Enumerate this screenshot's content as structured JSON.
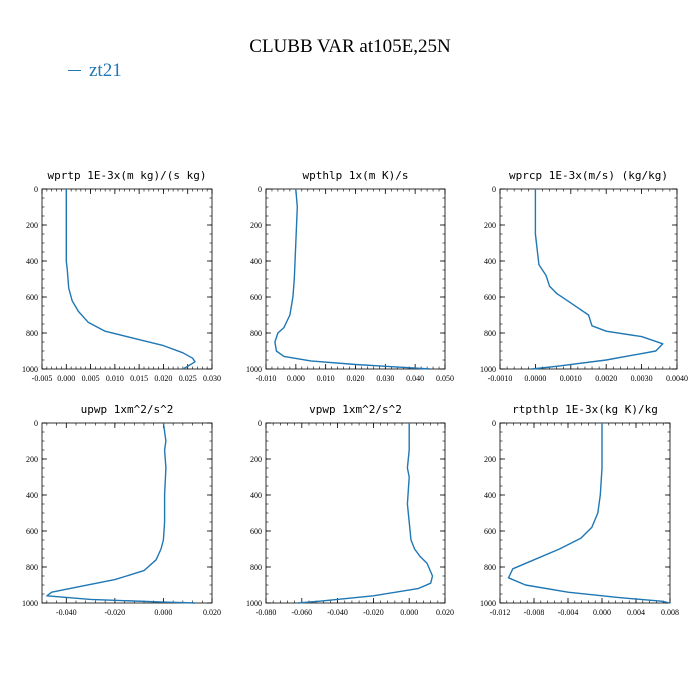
{
  "title": "CLUBB VAR at105E,25N",
  "legend": [
    {
      "label": "zt21",
      "color": "#1f77b4"
    }
  ],
  "chart_data": [
    {
      "type": "line",
      "title": "wprtp  1E-3x(m kg)/(s kg)",
      "xlim": [
        -0.005,
        0.03
      ],
      "xticks": [
        -0.005,
        0.0,
        0.005,
        0.01,
        0.015,
        0.02,
        0.025,
        0.03
      ],
      "xtick_labels": [
        "-0.005",
        "0.000",
        "0.005",
        "0.010",
        "0.015",
        "0.020",
        "0.025",
        "0.030"
      ],
      "ylim": [
        1000,
        0
      ],
      "yticks": [
        0,
        200,
        400,
        600,
        800,
        1000
      ],
      "ytick_labels": [
        "0",
        "200",
        "400",
        "600",
        "800",
        "1000"
      ],
      "series": [
        {
          "name": "zt21",
          "color": "#1f77b4",
          "x": [
            0.0,
            0.0,
            0.0,
            0.0002,
            0.0005,
            0.0012,
            0.0025,
            0.0045,
            0.008,
            0.014,
            0.02,
            0.024,
            0.026,
            0.0265,
            0.025,
            0.024
          ],
          "y": [
            0,
            200,
            400,
            450,
            550,
            620,
            680,
            740,
            790,
            830,
            870,
            910,
            940,
            960,
            985,
            1000
          ]
        }
      ]
    },
    {
      "type": "line",
      "title": "wpthlp  1x(m K)/s",
      "xlim": [
        -0.01,
        0.05
      ],
      "xticks": [
        -0.01,
        0.0,
        0.01,
        0.02,
        0.03,
        0.04,
        0.05
      ],
      "xtick_labels": [
        "-0.010",
        "0.000",
        "0.010",
        "0.020",
        "0.030",
        "0.040",
        "0.050"
      ],
      "ylim": [
        1000,
        0
      ],
      "yticks": [
        0,
        200,
        400,
        600,
        800,
        1000
      ],
      "ytick_labels": [
        "0",
        "200",
        "400",
        "600",
        "800",
        "1000"
      ],
      "series": [
        {
          "name": "zt21",
          "color": "#1f77b4",
          "x": [
            0.0,
            0.0005,
            0.0,
            -0.0005,
            -0.001,
            -0.002,
            -0.004,
            -0.006,
            -0.007,
            -0.0065,
            -0.004,
            0.005,
            0.02,
            0.035,
            0.045
          ],
          "y": [
            0,
            100,
            300,
            500,
            600,
            700,
            770,
            800,
            850,
            900,
            930,
            955,
            975,
            990,
            1000
          ]
        }
      ]
    },
    {
      "type": "line",
      "title": "wprcp  1E-3x(m/s) (kg/kg)",
      "xlim": [
        -0.001,
        0.004
      ],
      "xticks": [
        -0.001,
        0.0,
        0.001,
        0.002,
        0.003,
        0.004
      ],
      "xtick_labels": [
        "-0.0010",
        "0.0000",
        "0.0010",
        "0.0020",
        "0.0030",
        "0.0040"
      ],
      "ylim": [
        1000,
        0
      ],
      "yticks": [
        0,
        200,
        400,
        600,
        800,
        1000
      ],
      "ytick_labels": [
        "0",
        "200",
        "400",
        "600",
        "800",
        "1000"
      ],
      "series": [
        {
          "name": "zt21",
          "color": "#1f77b4",
          "x": [
            0.0,
            0.0,
            0.0001,
            0.0003,
            0.0004,
            0.0006,
            0.0009,
            0.0012,
            0.0015,
            0.0016,
            0.002,
            0.003,
            0.0036,
            0.0034,
            0.002,
            0.0006,
            -0.0001
          ],
          "y": [
            0,
            250,
            420,
            480,
            540,
            580,
            620,
            660,
            700,
            760,
            790,
            820,
            860,
            900,
            950,
            985,
            1000
          ]
        }
      ]
    },
    {
      "type": "line",
      "title": "upwp  1xm^2/s^2",
      "xlim": [
        -0.05,
        0.02
      ],
      "xticks": [
        -0.04,
        -0.02,
        0.0,
        0.02
      ],
      "xtick_labels": [
        "-0.040",
        "-0.020",
        "0.000",
        "0.020"
      ],
      "ylim": [
        1000,
        0
      ],
      "yticks": [
        0,
        200,
        400,
        600,
        800,
        1000
      ],
      "ytick_labels": [
        "0",
        "200",
        "400",
        "600",
        "800",
        "1000"
      ],
      "series": [
        {
          "name": "zt21",
          "color": "#1f77b4",
          "x": [
            0.0,
            0.001,
            0.0005,
            0.001,
            0.0005,
            0.0005,
            0.0,
            -0.001,
            -0.003,
            -0.008,
            -0.02,
            -0.035,
            -0.046,
            -0.048,
            -0.03,
            0.0,
            0.013
          ],
          "y": [
            0,
            100,
            150,
            250,
            400,
            550,
            650,
            700,
            760,
            820,
            870,
            910,
            940,
            960,
            980,
            995,
            1000
          ]
        }
      ]
    },
    {
      "type": "line",
      "title": "vpwp  1xm^2/s^2",
      "xlim": [
        -0.08,
        0.02
      ],
      "xticks": [
        -0.08,
        -0.06,
        -0.04,
        -0.02,
        0.0,
        0.02
      ],
      "xtick_labels": [
        "-0.080",
        "-0.060",
        "-0.040",
        "-0.020",
        "0.000",
        "0.020"
      ],
      "ylim": [
        1000,
        0
      ],
      "yticks": [
        0,
        200,
        400,
        600,
        800,
        1000
      ],
      "ytick_labels": [
        "0",
        "200",
        "400",
        "600",
        "800",
        "1000"
      ],
      "series": [
        {
          "name": "zt21",
          "color": "#1f77b4",
          "x": [
            0.0,
            0.0,
            -0.001,
            0.0,
            -0.001,
            0.0,
            0.001,
            0.003,
            0.006,
            0.01,
            0.013,
            0.012,
            0.005,
            -0.02,
            -0.05,
            -0.062
          ],
          "y": [
            0,
            150,
            250,
            300,
            450,
            550,
            650,
            700,
            740,
            780,
            850,
            890,
            920,
            960,
            990,
            1000
          ]
        }
      ]
    },
    {
      "type": "line",
      "title": "rtpthlp  1E-3x(kg K)/kg",
      "xlim": [
        -0.012,
        0.008
      ],
      "xticks": [
        -0.012,
        -0.008,
        -0.004,
        0.0,
        0.004,
        0.008
      ],
      "xtick_labels": [
        "-0.012",
        "-0.008",
        "-0.004",
        "0.000",
        "0.004",
        "0.008"
      ],
      "ylim": [
        1000,
        0
      ],
      "yticks": [
        0,
        200,
        400,
        600,
        800,
        1000
      ],
      "ytick_labels": [
        "0",
        "200",
        "400",
        "600",
        "800",
        "1000"
      ],
      "series": [
        {
          "name": "zt21",
          "color": "#1f77b4",
          "x": [
            0.0,
            0.0,
            -0.0002,
            -0.0005,
            -0.0012,
            -0.0025,
            -0.005,
            -0.008,
            -0.0105,
            -0.011,
            -0.009,
            -0.004,
            0.002,
            0.007,
            0.008
          ],
          "y": [
            0,
            250,
            400,
            500,
            580,
            640,
            700,
            760,
            810,
            860,
            900,
            940,
            970,
            990,
            1000
          ]
        }
      ]
    }
  ]
}
